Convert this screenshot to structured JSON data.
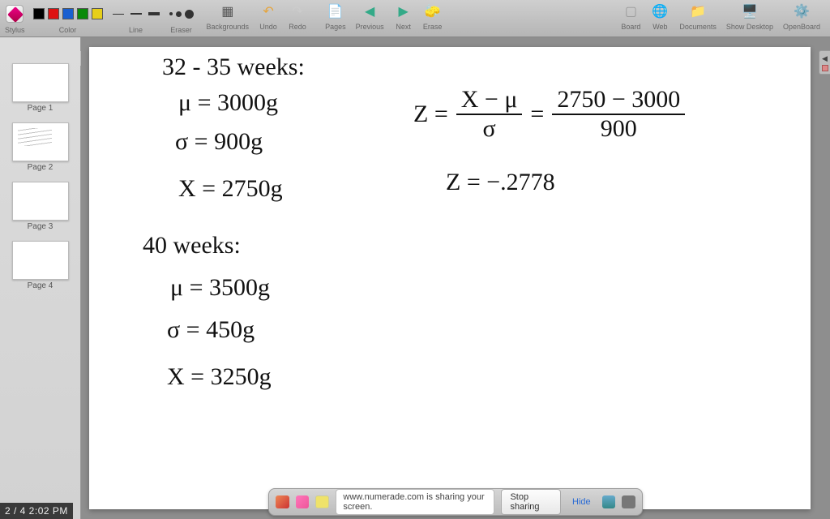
{
  "toolbar": {
    "stylus_label": "Stylus",
    "color_label": "Color",
    "colors": [
      "#000000",
      "#d11",
      "#1a5fd0",
      "#0a8a0a",
      "#e6cf1a"
    ],
    "line_label": "Line",
    "eraser_label": "Eraser",
    "backgrounds_label": "Backgrounds",
    "undo_label": "Undo",
    "redo_label": "Redo",
    "pages_label": "Pages",
    "previous_label": "Previous",
    "next_label": "Next",
    "erase_label": "Erase",
    "board_label": "Board",
    "web_label": "Web",
    "documents_label": "Documents",
    "show_desktop_label": "Show Desktop",
    "openboard_label": "OpenBoard"
  },
  "sidebar": {
    "pages": [
      "Page 1",
      "Page 2",
      "Page 3",
      "Page 4"
    ]
  },
  "canvas": {
    "l1": "32 - 35 weeks:",
    "l2": "μ = 3000g",
    "l3": "σ = 900g",
    "l4": "X = 2750g",
    "l5": "40 weeks:",
    "l6": "μ = 3500g",
    "l7": "σ = 450g",
    "l8": "X = 3250g",
    "z_eq": "Z =",
    "z_num1": "X − μ",
    "z_den1": "σ",
    "eq": "=",
    "z_num2": "2750 − 3000",
    "z_den2": "900",
    "z2": "Z = −.2778"
  },
  "share": {
    "msg": "www.numerade.com is sharing your screen.",
    "stop": "Stop sharing",
    "hide": "Hide"
  },
  "timestamp": "2 / 4  2:02 PM"
}
